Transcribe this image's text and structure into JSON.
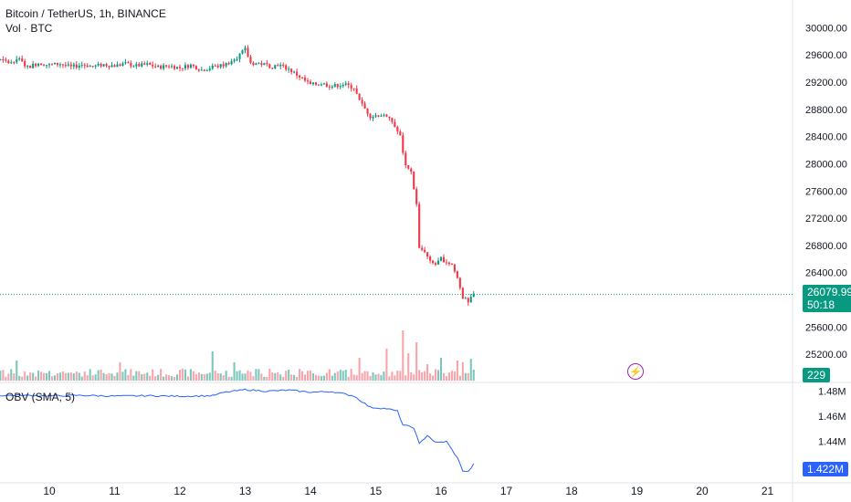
{
  "header": {
    "symbol": "Bitcoin / TetherUS, 1h, BINANCE",
    "volume_label": "Vol · BTC"
  },
  "obv_label": "OBV (SMA, 5)",
  "price_tag": {
    "price": "26079.99",
    "countdown": "50:18"
  },
  "volume_tag": "229",
  "obv_tag": "1.422M",
  "colors": {
    "up": "#089981",
    "down": "#f23645",
    "up_vol": "#7cc7bc",
    "down_vol": "#f7a5ab",
    "obv": "#2962ff"
  },
  "chart_data": {
    "type": "candlestick",
    "price_axis": {
      "ylim": [
        24800,
        30300
      ],
      "ticks": [
        "30000.00",
        "29600.00",
        "29200.00",
        "28800.00",
        "28400.00",
        "28000.00",
        "27600.00",
        "27200.00",
        "26800.00",
        "26400.00",
        "25600.00",
        "25200.00"
      ],
      "tick_values": [
        30000,
        29600,
        29200,
        28800,
        28400,
        28000,
        27600,
        27200,
        26800,
        26400,
        25600,
        25200
      ]
    },
    "obv_axis": {
      "ylim": [
        1.408,
        1.486
      ],
      "ticks": [
        "1.48M",
        "1.46M",
        "1.44M"
      ],
      "tick_values": [
        1.48,
        1.46,
        1.44
      ]
    },
    "x_axis": {
      "labels": [
        "10",
        "11",
        "12",
        "13",
        "14",
        "15",
        "16",
        "17",
        "18",
        "19",
        "20",
        "21"
      ],
      "bars_per_day": 24
    },
    "last_price": 26079.99,
    "close_path": [
      [
        0,
        29850
      ],
      [
        2,
        29900
      ],
      [
        5,
        30050
      ],
      [
        8,
        29600
      ],
      [
        10,
        29450
      ],
      [
        14,
        29580
      ],
      [
        18,
        29520
      ],
      [
        22,
        29480
      ],
      [
        24,
        29560
      ],
      [
        28,
        29420
      ],
      [
        32,
        29480
      ],
      [
        36,
        29450
      ],
      [
        40,
        29470
      ],
      [
        44,
        29420
      ],
      [
        48,
        29460
      ],
      [
        52,
        29430
      ],
      [
        56,
        29460
      ],
      [
        60,
        29440
      ],
      [
        64,
        29470
      ],
      [
        68,
        29440
      ],
      [
        72,
        29460
      ],
      [
        76,
        29420
      ],
      [
        80,
        29440
      ],
      [
        84,
        29410
      ],
      [
        88,
        29450
      ],
      [
        92,
        29380
      ],
      [
        96,
        29420
      ],
      [
        100,
        29450
      ],
      [
        104,
        29530
      ],
      [
        108,
        29680
      ],
      [
        110,
        29480
      ],
      [
        114,
        29470
      ],
      [
        118,
        29430
      ],
      [
        120,
        29460
      ],
      [
        124,
        29390
      ],
      [
        128,
        29280
      ],
      [
        132,
        29160
      ],
      [
        136,
        29180
      ],
      [
        140,
        29140
      ],
      [
        144,
        29170
      ],
      [
        148,
        29120
      ],
      [
        150,
        28920
      ],
      [
        154,
        28700
      ],
      [
        158,
        28720
      ],
      [
        162,
        28620
      ],
      [
        165,
        28400
      ],
      [
        167,
        27950
      ],
      [
        169,
        27880
      ],
      [
        171,
        27400
      ],
      [
        172,
        26750
      ],
      [
        174,
        26720
      ],
      [
        176,
        26550
      ],
      [
        178,
        26520
      ],
      [
        180,
        26600
      ],
      [
        184,
        26520
      ],
      [
        186,
        26320
      ],
      [
        188,
        26050
      ],
      [
        190,
        25950
      ],
      [
        192,
        26080
      ]
    ],
    "obv_path": [
      [
        0,
        1.4763
      ],
      [
        8,
        1.4765
      ],
      [
        16,
        1.4762
      ],
      [
        24,
        1.4766
      ],
      [
        36,
        1.4761
      ],
      [
        48,
        1.4765
      ],
      [
        60,
        1.4759
      ],
      [
        72,
        1.4762
      ],
      [
        84,
        1.4758
      ],
      [
        96,
        1.4762
      ],
      [
        100,
        1.4787
      ],
      [
        108,
        1.481
      ],
      [
        116,
        1.4798
      ],
      [
        124,
        1.4806
      ],
      [
        132,
        1.479
      ],
      [
        140,
        1.4795
      ],
      [
        148,
        1.476
      ],
      [
        154,
        1.467
      ],
      [
        160,
        1.466
      ],
      [
        164,
        1.464
      ],
      [
        166,
        1.453
      ],
      [
        170,
        1.451
      ],
      [
        172,
        1.438
      ],
      [
        175,
        1.445
      ],
      [
        178,
        1.439
      ],
      [
        182,
        1.44
      ],
      [
        186,
        1.427
      ],
      [
        188,
        1.417
      ],
      [
        190,
        1.416
      ],
      [
        192,
        1.422
      ]
    ],
    "volume_spikes": [
      [
        5,
        30
      ],
      [
        14,
        28
      ],
      [
        24,
        22
      ],
      [
        62,
        20
      ],
      [
        96,
        32
      ],
      [
        104,
        20
      ],
      [
        150,
        25
      ],
      [
        160,
        35
      ],
      [
        166,
        55
      ],
      [
        168,
        30
      ],
      [
        171,
        42
      ],
      [
        175,
        18
      ],
      [
        180,
        25
      ],
      [
        186,
        22
      ],
      [
        188,
        20
      ],
      [
        191,
        24
      ]
    ]
  }
}
